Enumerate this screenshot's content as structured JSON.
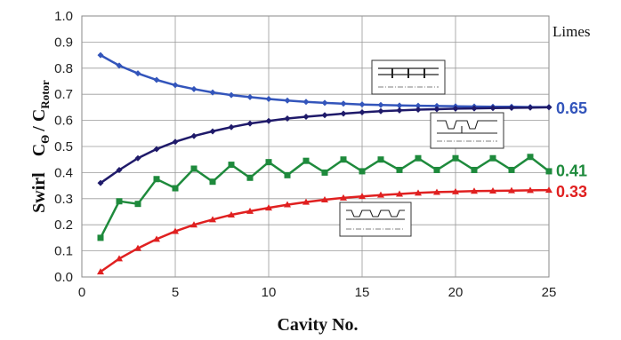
{
  "chart_data": {
    "type": "line",
    "xlabel": "Cavity  No.",
    "ylabel": {
      "prefix": "Swirl",
      "c": "C",
      "c_sub": "Θ",
      "slash": "/ ",
      "c2": "C",
      "c2_sub": "Rotor"
    },
    "xlim": [
      0,
      25
    ],
    "ylim": [
      0.0,
      1.0
    ],
    "x_ticks": [
      "0",
      "5",
      "10",
      "15",
      "20",
      "25"
    ],
    "y_ticks": [
      "0.0",
      "0.1",
      "0.2",
      "0.3",
      "0.4",
      "0.5",
      "0.6",
      "0.7",
      "0.8",
      "0.9",
      "1.0"
    ],
    "grid": true,
    "x": [
      1,
      2,
      3,
      4,
      5,
      6,
      7,
      8,
      9,
      10,
      11,
      12,
      13,
      14,
      15,
      16,
      17,
      18,
      19,
      20,
      21,
      22,
      23,
      24,
      25
    ],
    "series": [
      {
        "key": "upper_decreasing",
        "color": "#3355bb",
        "marker": "diamond",
        "values": [
          0.85,
          0.81,
          0.78,
          0.755,
          0.735,
          0.72,
          0.707,
          0.697,
          0.689,
          0.682,
          0.676,
          0.671,
          0.667,
          0.664,
          0.661,
          0.659,
          0.657,
          0.656,
          0.655,
          0.654,
          0.653,
          0.652,
          0.652,
          0.651,
          0.651
        ]
      },
      {
        "key": "upper_increasing",
        "color": "#1f1a6a",
        "marker": "diamond",
        "values": [
          0.36,
          0.41,
          0.455,
          0.49,
          0.518,
          0.54,
          0.558,
          0.574,
          0.588,
          0.598,
          0.607,
          0.614,
          0.62,
          0.626,
          0.631,
          0.635,
          0.638,
          0.641,
          0.643,
          0.645,
          0.646,
          0.647,
          0.648,
          0.649,
          0.65
        ]
      },
      {
        "key": "middle_oscillating",
        "color": "#1e8a3c",
        "marker": "square",
        "values": [
          0.15,
          0.29,
          0.28,
          0.375,
          0.34,
          0.415,
          0.365,
          0.43,
          0.38,
          0.44,
          0.39,
          0.445,
          0.4,
          0.45,
          0.405,
          0.45,
          0.41,
          0.455,
          0.41,
          0.455,
          0.41,
          0.455,
          0.41,
          0.46,
          0.405
        ]
      },
      {
        "key": "lower_increasing",
        "color": "#e02020",
        "marker": "triangle",
        "values": [
          0.02,
          0.07,
          0.11,
          0.145,
          0.175,
          0.2,
          0.22,
          0.238,
          0.252,
          0.265,
          0.277,
          0.287,
          0.296,
          0.303,
          0.309,
          0.314,
          0.318,
          0.322,
          0.325,
          0.327,
          0.329,
          0.33,
          0.331,
          0.332,
          0.333
        ]
      }
    ],
    "limes": {
      "title": "Limes",
      "labels": [
        {
          "text": "0.65",
          "value": 0.65,
          "color": "#3355bb"
        },
        {
          "text": "0.41",
          "value": 0.41,
          "color": "#1e8a3c"
        },
        {
          "text": "0.33",
          "value": 0.33,
          "color": "#e02020"
        }
      ]
    },
    "insets": [
      {
        "series_key": "upper_decreasing",
        "icon": "stepped-seal-icon"
      },
      {
        "series_key": "middle_oscillating",
        "icon": "staggered-seal-icon"
      },
      {
        "series_key": "lower_increasing",
        "icon": "straight-seal-icon"
      }
    ]
  }
}
